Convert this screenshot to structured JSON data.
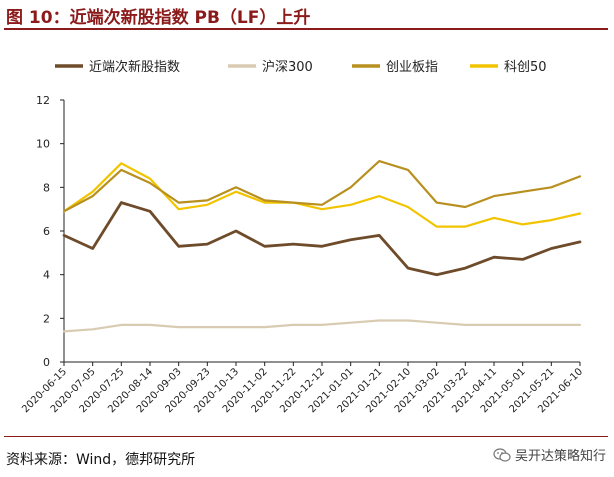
{
  "title": "图 10：近端次新股指数 PB（LF）上升",
  "source": "资料来源：Wind，德邦研究所",
  "watermark": "吴开达策略知行",
  "watermark_icon": "wechat-icon",
  "chart_data": {
    "type": "line",
    "ylim": [
      0,
      12
    ],
    "yticks": [
      "0",
      "2",
      "4",
      "6",
      "8",
      "10",
      "12"
    ],
    "x": [
      "2020-06-15",
      "2020-07-05",
      "2020-07-25",
      "2020-08-14",
      "2020-09-03",
      "2020-09-23",
      "2020-10-13",
      "2020-11-02",
      "2020-11-22",
      "2020-12-12",
      "2021-01-01",
      "2021-01-21",
      "2021-02-10",
      "2021-03-02",
      "2021-03-22",
      "2021-04-11",
      "2021-05-01",
      "2021-05-21",
      "2021-06-10"
    ],
    "grid": false,
    "legend_position": "top",
    "series": [
      {
        "name": "近端次新股指数",
        "color": "#6E4B2A",
        "values": [
          5.8,
          5.2,
          7.3,
          6.9,
          5.3,
          5.4,
          6.0,
          5.3,
          5.4,
          5.3,
          5.6,
          5.8,
          4.3,
          4.0,
          4.3,
          4.8,
          4.7,
          5.2,
          5.5
        ]
      },
      {
        "name": "沪深300",
        "color": "#D8CBB2",
        "values": [
          1.4,
          1.5,
          1.7,
          1.7,
          1.6,
          1.6,
          1.6,
          1.6,
          1.7,
          1.7,
          1.8,
          1.9,
          1.9,
          1.8,
          1.7,
          1.7,
          1.7,
          1.7,
          1.7
        ]
      },
      {
        "name": "创业板指",
        "color": "#B89020",
        "values": [
          6.9,
          7.6,
          8.8,
          8.2,
          7.3,
          7.4,
          8.0,
          7.4,
          7.3,
          7.2,
          8.0,
          9.2,
          8.8,
          7.3,
          7.1,
          7.6,
          7.8,
          8.0,
          8.5
        ]
      },
      {
        "name": "科创50",
        "color": "#F2C400",
        "values": [
          6.9,
          7.8,
          9.1,
          8.4,
          7.0,
          7.2,
          7.8,
          7.3,
          7.3,
          7.0,
          7.2,
          7.6,
          7.1,
          6.2,
          6.2,
          6.6,
          6.3,
          6.5,
          6.8
        ]
      }
    ]
  }
}
